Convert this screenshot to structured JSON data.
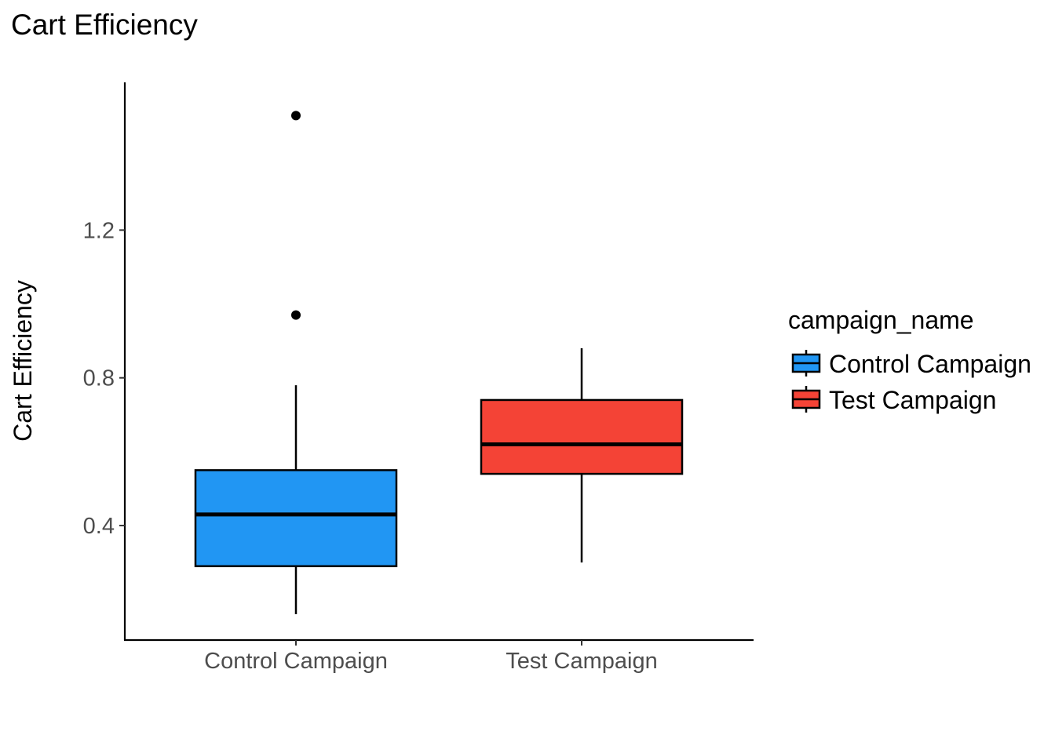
{
  "chart_data": {
    "type": "boxplot",
    "title": "Cart Efficiency",
    "xlabel": "",
    "ylabel": "Cart Efficiency",
    "categories": [
      "Control Campaign",
      "Test Campaign"
    ],
    "ylim": [
      0.09,
      1.6
    ],
    "yticks": [
      0.4,
      0.8,
      1.2
    ],
    "yticks_labels": [
      "0.4",
      "0.8",
      "1.2"
    ],
    "grid": false,
    "legend": {
      "title": "campaign_name",
      "placement": "right",
      "entries": [
        "Control Campaign",
        "Test Campaign"
      ]
    },
    "series": [
      {
        "category": "Control Campaign",
        "color": "#2196f3",
        "min": 0.16,
        "q1": 0.29,
        "median": 0.43,
        "q3": 0.55,
        "max": 0.78,
        "outliers": [
          0.97,
          1.51
        ]
      },
      {
        "category": "Test Campaign",
        "color": "#f44336",
        "min": 0.3,
        "q1": 0.54,
        "median": 0.62,
        "q3": 0.74,
        "max": 0.88,
        "outliers": []
      }
    ]
  }
}
